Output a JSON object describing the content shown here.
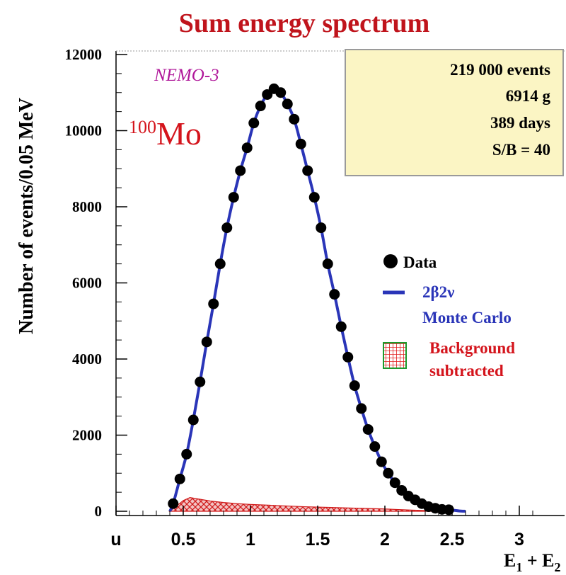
{
  "chart_data": {
    "type": "scatter",
    "title": "Sum energy spectrum",
    "ylabel": "Number of events/0.05 MeV",
    "xlabel_main": "E",
    "xlabel_sub1": "1",
    "xlabel_plus": " + E",
    "xlabel_sub2": "2",
    "xlim": [
      0,
      3.2
    ],
    "ylim": [
      0,
      12500
    ],
    "x_ticks": [
      {
        "value": 0,
        "label": "u"
      },
      {
        "value": 0.5,
        "label": "0.5"
      },
      {
        "value": 1,
        "label": "1"
      },
      {
        "value": 1.5,
        "label": "1.5"
      },
      {
        "value": 2,
        "label": "2"
      },
      {
        "value": 2.5,
        "label": "2.5"
      },
      {
        "value": 3,
        "label": "3"
      }
    ],
    "y_ticks": [
      {
        "value": 0,
        "label": "0"
      },
      {
        "value": 2000,
        "label": "2000"
      },
      {
        "value": 4000,
        "label": "4000"
      },
      {
        "value": 6000,
        "label": "6000"
      },
      {
        "value": 8000,
        "label": "8000"
      },
      {
        "value": 10000,
        "label": "10000"
      },
      {
        "value": 12000,
        "label": "12000"
      }
    ],
    "experiment_label": "NEMO-3",
    "isotope_mass": "100",
    "isotope_element": "Mo",
    "info_box": [
      "219 000  events",
      "6914 g",
      "389 days",
      "S/B = 40"
    ],
    "legend": {
      "data_label": "Data",
      "mc_label_line1": "2β2ν",
      "mc_label_line2": "Monte Carlo",
      "bkg_label_line1": "Background",
      "bkg_label_line2": "subtracted"
    },
    "colors": {
      "title": "#c0141c",
      "data": "#000000",
      "mc": "#2a35b8",
      "background": "#d01a1a",
      "legend_bkg_grid": "#e01e1e",
      "legend_bkg_border": "#1c9a2c",
      "info_box_fill": "#fbf5c4",
      "info_box_border": "#9a9a9a"
    },
    "series": [
      {
        "name": "Data",
        "kind": "points",
        "x": [
          0.425,
          0.475,
          0.525,
          0.575,
          0.625,
          0.675,
          0.725,
          0.775,
          0.825,
          0.875,
          0.925,
          0.975,
          1.025,
          1.075,
          1.125,
          1.175,
          1.225,
          1.275,
          1.325,
          1.375,
          1.425,
          1.475,
          1.525,
          1.575,
          1.625,
          1.675,
          1.725,
          1.775,
          1.825,
          1.875,
          1.925,
          1.975,
          2.025,
          2.075,
          2.125,
          2.175,
          2.225,
          2.275,
          2.325,
          2.375,
          2.425,
          2.475
        ],
        "y": [
          200,
          850,
          1500,
          2400,
          3400,
          4450,
          5450,
          6500,
          7450,
          8250,
          8950,
          9550,
          10200,
          10650,
          10950,
          11100,
          11000,
          10700,
          10300,
          9650,
          8950,
          8250,
          7450,
          6500,
          5700,
          4850,
          4050,
          3300,
          2700,
          2150,
          1700,
          1300,
          1000,
          750,
          550,
          400,
          300,
          200,
          120,
          80,
          50,
          40
        ]
      },
      {
        "name": "2β2ν Monte Carlo",
        "kind": "line",
        "x": [
          0.4,
          0.425,
          0.475,
          0.525,
          0.575,
          0.625,
          0.675,
          0.725,
          0.775,
          0.825,
          0.875,
          0.925,
          0.975,
          1.025,
          1.075,
          1.125,
          1.175,
          1.225,
          1.275,
          1.325,
          1.375,
          1.425,
          1.475,
          1.525,
          1.575,
          1.625,
          1.675,
          1.725,
          1.775,
          1.825,
          1.875,
          1.925,
          1.975,
          2.025,
          2.075,
          2.125,
          2.175,
          2.225,
          2.275,
          2.325,
          2.375,
          2.425,
          2.475,
          2.55,
          2.6
        ],
        "y": [
          0,
          200,
          850,
          1500,
          2400,
          3400,
          4450,
          5450,
          6500,
          7450,
          8250,
          8950,
          9550,
          10200,
          10650,
          10950,
          11100,
          11000,
          10700,
          10300,
          9650,
          8950,
          8250,
          7450,
          6500,
          5700,
          4850,
          4050,
          3300,
          2700,
          2150,
          1700,
          1300,
          1000,
          750,
          550,
          400,
          300,
          200,
          120,
          80,
          50,
          40,
          10,
          0
        ]
      },
      {
        "name": "Background subtracted",
        "kind": "area",
        "x": [
          0.4,
          0.5,
          0.55,
          0.6,
          0.65,
          0.7,
          0.8,
          0.9,
          1.0,
          1.2,
          1.4,
          1.6,
          1.8,
          2.0,
          2.1,
          2.2,
          2.3,
          2.4,
          2.5
        ],
        "y": [
          0,
          280,
          360,
          330,
          300,
          270,
          230,
          200,
          180,
          150,
          120,
          100,
          80,
          60,
          45,
          30,
          20,
          10,
          0
        ]
      }
    ]
  }
}
